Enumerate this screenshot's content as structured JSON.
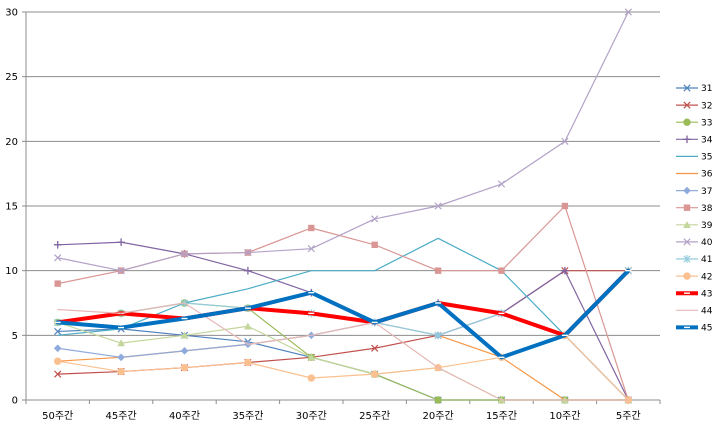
{
  "chart_data": {
    "type": "line",
    "title": "",
    "xlabel": "",
    "ylabel": "",
    "ylim": [
      0,
      30
    ],
    "y_ticks": [
      "0",
      "5",
      "10",
      "15",
      "20",
      "25",
      "30"
    ],
    "categories": [
      "50주간",
      "45주간",
      "40주간",
      "35주간",
      "30주간",
      "25주간",
      "20주간",
      "15주간",
      "10주간",
      "5주간"
    ],
    "grid": "horizontal",
    "legend_position": "right",
    "series": [
      {
        "name": "31",
        "color": "#4f81bd",
        "marker": "x",
        "width": 1.2,
        "values": [
          5.3,
          5.5,
          5.0,
          4.5,
          3.3,
          2.0,
          0.0,
          0.0,
          0.0,
          0.0
        ]
      },
      {
        "name": "32",
        "color": "#c0504d",
        "marker": "x",
        "width": 1.2,
        "values": [
          2.0,
          2.2,
          2.5,
          2.9,
          3.3,
          4.0,
          5.0,
          6.7,
          10.0,
          10.0
        ]
      },
      {
        "name": "33",
        "color": "#9bbb59",
        "marker": "circle",
        "width": 1.2,
        "values": [
          6.0,
          6.7,
          7.5,
          7.1,
          3.3,
          2.0,
          0.0,
          0.0,
          0.0,
          0.0
        ]
      },
      {
        "name": "34",
        "color": "#8064a2",
        "marker": "plus",
        "width": 1.2,
        "values": [
          12.0,
          12.2,
          11.3,
          10.0,
          8.3,
          6.0,
          7.5,
          6.7,
          10.0,
          0.0
        ]
      },
      {
        "name": "35",
        "color": "#4bacc6",
        "marker": "none",
        "width": 1.2,
        "values": [
          5.0,
          5.5,
          7.5,
          8.6,
          10.0,
          10.0,
          12.5,
          10.0,
          5.0,
          0.0
        ]
      },
      {
        "name": "36",
        "color": "#f79646",
        "marker": "none",
        "width": 1.2,
        "values": [
          3.0,
          3.3,
          3.8,
          4.3,
          5.0,
          6.0,
          5.0,
          3.3,
          0.0,
          0.0
        ]
      },
      {
        "name": "37",
        "color": "#8faadc",
        "marker": "diamond",
        "width": 1.2,
        "values": [
          4.0,
          3.3,
          3.8,
          4.3,
          5.0,
          6.0,
          5.0,
          6.7,
          5.0,
          0.0
        ]
      },
      {
        "name": "38",
        "color": "#d99694",
        "marker": "square",
        "width": 1.2,
        "values": [
          9.0,
          10.0,
          11.3,
          11.4,
          13.3,
          12.0,
          10.0,
          10.0,
          15.0,
          0.0
        ]
      },
      {
        "name": "39",
        "color": "#c3d69b",
        "marker": "triangle",
        "width": 1.2,
        "values": [
          6.0,
          4.4,
          5.0,
          5.7,
          3.3,
          2.0,
          2.5,
          0.0,
          0.0,
          0.0
        ]
      },
      {
        "name": "40",
        "color": "#b3a2c7",
        "marker": "x",
        "width": 1.2,
        "values": [
          11.0,
          10.0,
          11.3,
          11.4,
          11.7,
          14.0,
          15.0,
          16.7,
          20.0,
          30.0
        ]
      },
      {
        "name": "41",
        "color": "#93cddd",
        "marker": "star",
        "width": 1.2,
        "values": [
          6.0,
          6.7,
          7.5,
          7.1,
          6.7,
          6.0,
          5.0,
          6.7,
          5.0,
          10.0
        ]
      },
      {
        "name": "42",
        "color": "#fac090",
        "marker": "circle",
        "width": 1.2,
        "values": [
          3.0,
          2.2,
          2.5,
          2.9,
          1.7,
          2.0,
          2.5,
          3.3,
          5.0,
          0.0
        ]
      },
      {
        "name": "43",
        "color": "#ff0000",
        "marker": "none",
        "width": 4.0,
        "values": [
          6.0,
          6.7,
          6.3,
          7.1,
          6.7,
          6.0,
          7.5,
          6.7,
          5.0,
          10.0
        ]
      },
      {
        "name": "44",
        "color": "#e6b9b8",
        "marker": "none",
        "width": 1.2,
        "values": [
          7.0,
          6.7,
          7.5,
          4.3,
          5.0,
          6.0,
          2.5,
          0.0,
          0.0,
          0.0
        ]
      },
      {
        "name": "45",
        "color": "#0070c0",
        "marker": "none",
        "width": 4.0,
        "values": [
          6.0,
          5.6,
          6.3,
          7.1,
          8.3,
          6.0,
          7.5,
          3.3,
          5.0,
          10.0
        ]
      }
    ]
  }
}
